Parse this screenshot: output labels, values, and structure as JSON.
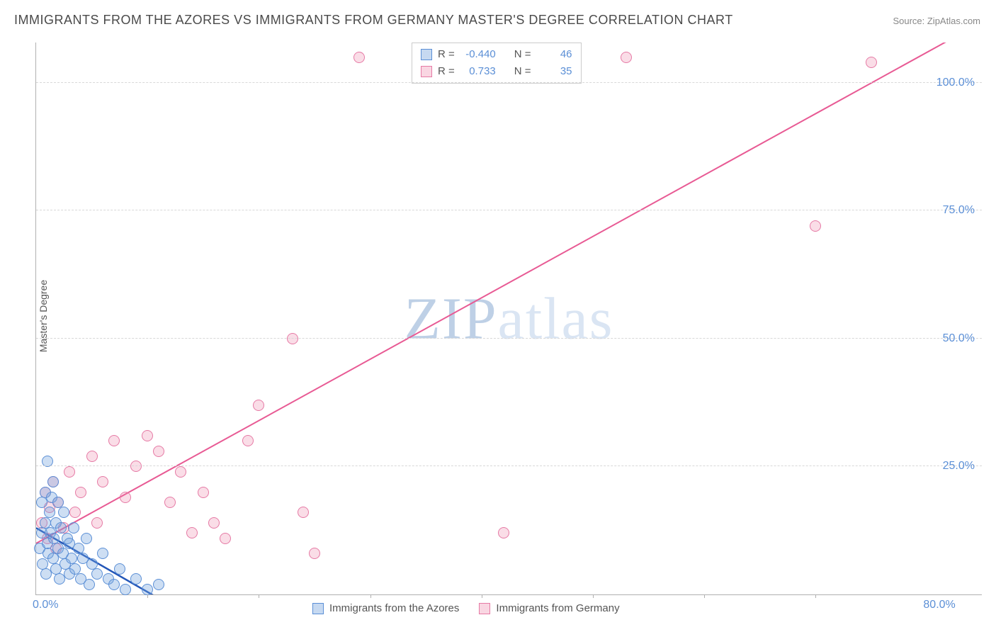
{
  "title": "IMMIGRANTS FROM THE AZORES VS IMMIGRANTS FROM GERMANY MASTER'S DEGREE CORRELATION CHART",
  "source_label": "Source: ZipAtlas.com",
  "y_axis_label": "Master's Degree",
  "watermark": {
    "part1": "ZIP",
    "part2": "atlas"
  },
  "chart": {
    "type": "scatter",
    "background_color": "#ffffff",
    "grid_color": "#d8d8d8",
    "axis_color": "#b0b0b0",
    "tick_label_color": "#5b8fd6",
    "tick_fontsize": 16,
    "xlim": [
      0,
      85
    ],
    "ylim": [
      0,
      108
    ],
    "x_ticks": [
      {
        "value": 0,
        "label": "0.0%"
      },
      {
        "value": 80,
        "label": "80.0%"
      }
    ],
    "x_minor_ticks": [
      10,
      20,
      30,
      40,
      50,
      60,
      70
    ],
    "y_ticks": [
      {
        "value": 25,
        "label": "25.0%"
      },
      {
        "value": 50,
        "label": "50.0%"
      },
      {
        "value": 75,
        "label": "75.0%"
      },
      {
        "value": 100,
        "label": "100.0%"
      }
    ],
    "marker_radius": 8,
    "line_width_blue": 2.5,
    "line_width_pink": 2,
    "series": {
      "azores": {
        "label": "Immigrants from the Azores",
        "fill_color": "rgba(112,160,220,0.35)",
        "stroke_color": "#5b8fd6",
        "R": "-0.440",
        "N": "46",
        "trend": {
          "x1": 0,
          "y1": 13,
          "x2": 12,
          "y2": -2
        },
        "points": [
          [
            0.3,
            9
          ],
          [
            0.5,
            12
          ],
          [
            0.5,
            18
          ],
          [
            0.6,
            6
          ],
          [
            0.8,
            14
          ],
          [
            0.8,
            20
          ],
          [
            0.9,
            4
          ],
          [
            1.0,
            10
          ],
          [
            1.0,
            26
          ],
          [
            1.1,
            8
          ],
          [
            1.2,
            16
          ],
          [
            1.3,
            12
          ],
          [
            1.4,
            19
          ],
          [
            1.5,
            7
          ],
          [
            1.5,
            22
          ],
          [
            1.6,
            11
          ],
          [
            1.8,
            14
          ],
          [
            1.8,
            5
          ],
          [
            2.0,
            9
          ],
          [
            2.0,
            18
          ],
          [
            2.1,
            3
          ],
          [
            2.2,
            13
          ],
          [
            2.4,
            8
          ],
          [
            2.5,
            16
          ],
          [
            2.6,
            6
          ],
          [
            2.8,
            11
          ],
          [
            3.0,
            4
          ],
          [
            3.0,
            10
          ],
          [
            3.2,
            7
          ],
          [
            3.4,
            13
          ],
          [
            3.5,
            5
          ],
          [
            3.8,
            9
          ],
          [
            4.0,
            3
          ],
          [
            4.2,
            7
          ],
          [
            4.5,
            11
          ],
          [
            4.8,
            2
          ],
          [
            5.0,
            6
          ],
          [
            5.5,
            4
          ],
          [
            6.0,
            8
          ],
          [
            6.5,
            3
          ],
          [
            7.0,
            2
          ],
          [
            7.5,
            5
          ],
          [
            8.0,
            1
          ],
          [
            9.0,
            3
          ],
          [
            10.0,
            1
          ],
          [
            11.0,
            2
          ]
        ]
      },
      "germany": {
        "label": "Immigrants from Germany",
        "fill_color": "rgba(235,120,160,0.25)",
        "stroke_color": "#e67aa5",
        "R": "0.733",
        "N": "35",
        "trend": {
          "x1": 0,
          "y1": 10,
          "x2": 85,
          "y2": 112
        },
        "points": [
          [
            0.5,
            14
          ],
          [
            0.8,
            20
          ],
          [
            1.0,
            11
          ],
          [
            1.2,
            17
          ],
          [
            1.5,
            22
          ],
          [
            1.8,
            9
          ],
          [
            2.0,
            18
          ],
          [
            2.5,
            13
          ],
          [
            3.0,
            24
          ],
          [
            3.5,
            16
          ],
          [
            4.0,
            20
          ],
          [
            5.0,
            27
          ],
          [
            5.5,
            14
          ],
          [
            6.0,
            22
          ],
          [
            7.0,
            30
          ],
          [
            8.0,
            19
          ],
          [
            9.0,
            25
          ],
          [
            10.0,
            31
          ],
          [
            11.0,
            28
          ],
          [
            12.0,
            18
          ],
          [
            13.0,
            24
          ],
          [
            14.0,
            12
          ],
          [
            15.0,
            20
          ],
          [
            16.0,
            14
          ],
          [
            17.0,
            11
          ],
          [
            19.0,
            30
          ],
          [
            20.0,
            37
          ],
          [
            23.0,
            50
          ],
          [
            24.0,
            16
          ],
          [
            25.0,
            8
          ],
          [
            29.0,
            105
          ],
          [
            42.0,
            12
          ],
          [
            53.0,
            105
          ],
          [
            70.0,
            72
          ],
          [
            75.0,
            104
          ]
        ]
      }
    }
  },
  "stats_legend": {
    "r_label": "R =",
    "n_label": "N ="
  }
}
